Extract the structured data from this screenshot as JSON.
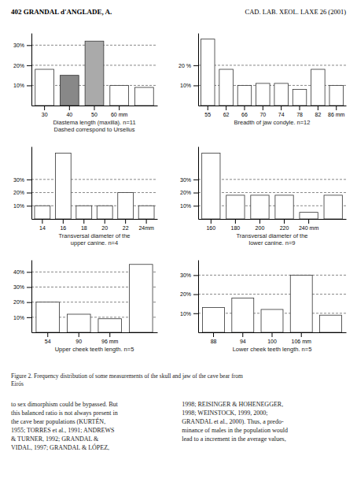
{
  "header_left": "402 GRANDAL d'ANGLADE, A.",
  "header_right": "CAD. LAB. XEOL. LAXE 26 (2001)",
  "caption": "Figure 2. Frequency distribution of some measurements of the skull and jaw of the cave bear from\nEirós",
  "body_text": [
    "to sex dimorphism could be bypassed. But\nthis balanced ratio is not always present in\nthe cave bear populations (KURTÉN,\n1955; TORRES et al., 1991; ANDREWS\n& TURNER, 1992; GRANDAL &\nVIDAL, 1997; GRANDAL & LÓPEZ,",
    "1998; REISINGER & HOHENEGGER,\n1998;  WEINSTOCK,  1999,  2000;\nGRANDAL et al., 2000). Thus, a predo-\nminance of males in the population would\nlead to a increment in the average values,"
  ],
  "chart_data": [
    {
      "type": "bar",
      "categories": [
        "30",
        "40",
        "50",
        "60 mm",
        null
      ],
      "values": [
        18,
        15,
        32,
        10,
        9
      ],
      "colors": [
        "white",
        "#888888",
        "#aaaaaa",
        "white",
        "white"
      ],
      "xlabel": "Diastema length (maxilla). n=11\nDashed correspond to Ursellus",
      "ylim": [
        0,
        36
      ],
      "yticks": [
        {
          "value": 10,
          "label": "10%"
        },
        {
          "value": 20,
          "label": "20%"
        },
        {
          "value": 30,
          "label": "30%"
        }
      ],
      "grid": true
    },
    {
      "type": "bar",
      "categories": [
        "55",
        "62",
        "66",
        "70",
        "74",
        "78",
        "82",
        "86 mm"
      ],
      "values": [
        33,
        18,
        10,
        11,
        11,
        8,
        18,
        10
      ],
      "colors": [
        "white",
        "white",
        "white",
        "white",
        "white",
        "white",
        "white",
        "white"
      ],
      "xlabel": "Breadth of jaw condyle. n=12",
      "ylim": [
        0,
        36
      ],
      "yticks": [
        {
          "value": 10,
          "label": "10%"
        },
        {
          "value": 20,
          "label": "20 %"
        }
      ],
      "grid": true
    },
    {
      "type": "bar",
      "categories": [
        "14",
        "16",
        "18",
        "20",
        "22",
        "24mm"
      ],
      "values": [
        10,
        50,
        10,
        10,
        20,
        10
      ],
      "colors": [
        "white",
        "white",
        "white",
        "white",
        "white",
        "white"
      ],
      "xlabel": "Transversal diameter of the\nupper canine. n=4",
      "ylim": [
        0,
        55
      ],
      "yticks": [
        {
          "value": 10,
          "label": "10%"
        },
        {
          "value": 20,
          "label": "20%"
        },
        {
          "value": 30,
          "label": "30%"
        }
      ],
      "grid": true
    },
    {
      "type": "bar",
      "categories": [
        "160",
        "180",
        "200",
        "220",
        "240 mm",
        null
      ],
      "values": [
        50,
        18,
        18,
        18,
        5,
        18
      ],
      "colors": [
        "white",
        "white",
        "white",
        "white",
        "white",
        "white"
      ],
      "xlabel": "Transversal diameter of the\nlower canine. n=9",
      "ylim": [
        0,
        55
      ],
      "yticks": [
        {
          "value": 10,
          "label": "10%"
        },
        {
          "value": 20,
          "label": "20%"
        },
        {
          "value": 30,
          "label": "30%"
        }
      ],
      "grid": true
    },
    {
      "type": "bar",
      "categories": [
        "54",
        "90",
        "96 mm",
        null
      ],
      "values": [
        20,
        12,
        9,
        45
      ],
      "colors": [
        "white",
        "white",
        "white",
        "white"
      ],
      "xlabel": "Upper cheek teeth length. n=5",
      "ylim": [
        0,
        48
      ],
      "yticks": [
        {
          "value": 10,
          "label": "10%"
        },
        {
          "value": 20,
          "label": "20%"
        },
        {
          "value": 30,
          "label": "30%"
        },
        {
          "value": 40,
          "label": "40%"
        }
      ],
      "grid": true
    },
    {
      "type": "bar",
      "categories": [
        "88",
        "94",
        "100",
        "106 mm",
        null
      ],
      "values": [
        13,
        18,
        12,
        30,
        9
      ],
      "colors": [
        "white",
        "white",
        "white",
        "white",
        "white"
      ],
      "xlabel": "Lower cheek teeth length. n=5",
      "ylim": [
        0,
        38
      ],
      "yticks": [
        {
          "value": 10,
          "label": "10%"
        },
        {
          "value": 20,
          "label": "20%"
        },
        {
          "value": 30,
          "label": "30%"
        }
      ],
      "grid": true
    }
  ]
}
